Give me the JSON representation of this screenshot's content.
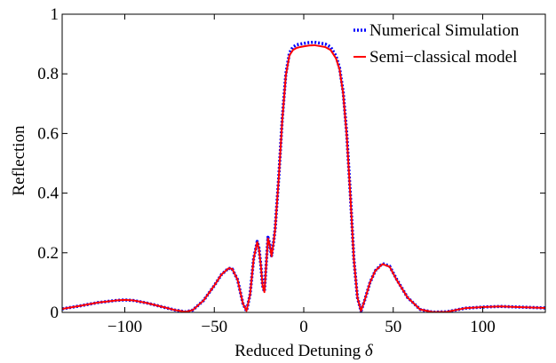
{
  "chart_data": {
    "type": "line",
    "xlabel": "Reduced Detuning δ",
    "ylabel": "Reflection",
    "xlim": [
      -135,
      135
    ],
    "ylim": [
      0,
      1
    ],
    "xticks": [
      -100,
      -50,
      0,
      50,
      100
    ],
    "xtick_labels": [
      "−100",
      "−50",
      "0",
      "50",
      "100"
    ],
    "yticks": [
      0,
      0.2,
      0.4,
      0.6,
      0.8,
      1
    ],
    "ytick_labels": [
      "0",
      "0.2",
      "0.4",
      "0.6",
      "0.8",
      "1"
    ],
    "grid": false,
    "legend_position": "top-right",
    "series": [
      {
        "name": "Numerical Simulation",
        "color": "#0000ff",
        "style": "dotted",
        "x": [
          -135,
          -125,
          -115,
          -105,
          -100,
          -95,
          -88,
          -80,
          -72,
          -66,
          -62,
          -56,
          -50,
          -46,
          -42,
          -40,
          -37,
          -34,
          -32,
          -30,
          -28,
          -26,
          -25,
          -24,
          -23,
          -22,
          -21,
          -20,
          -19,
          -18,
          -17,
          -16,
          -14,
          -12,
          -10,
          -8,
          -6,
          -4,
          -2,
          0,
          3,
          6,
          9,
          12,
          15,
          18,
          20,
          22,
          24,
          26,
          28,
          30,
          32,
          34,
          37,
          40,
          44,
          48,
          52,
          58,
          65,
          72,
          80,
          85,
          90,
          100,
          110,
          120,
          135
        ],
        "y": [
          0.012,
          0.022,
          0.033,
          0.04,
          0.042,
          0.04,
          0.032,
          0.02,
          0.008,
          0.002,
          0.008,
          0.04,
          0.09,
          0.127,
          0.148,
          0.146,
          0.11,
          0.03,
          0.005,
          0.06,
          0.18,
          0.238,
          0.215,
          0.16,
          0.09,
          0.07,
          0.16,
          0.252,
          0.23,
          0.19,
          0.23,
          0.28,
          0.45,
          0.65,
          0.8,
          0.87,
          0.89,
          0.897,
          0.9,
          0.902,
          0.905,
          0.906,
          0.903,
          0.9,
          0.89,
          0.86,
          0.82,
          0.74,
          0.6,
          0.4,
          0.18,
          0.05,
          0.005,
          0.04,
          0.1,
          0.14,
          0.164,
          0.155,
          0.11,
          0.05,
          0.01,
          0.001,
          0.002,
          0.008,
          0.014,
          0.018,
          0.02,
          0.018,
          0.015
        ]
      },
      {
        "name": "Semi−classical model",
        "color": "#ff0000",
        "style": "solid",
        "x": [
          -135,
          -125,
          -115,
          -105,
          -100,
          -95,
          -88,
          -80,
          -72,
          -66,
          -62,
          -56,
          -50,
          -46,
          -42,
          -40,
          -37,
          -34,
          -32,
          -30,
          -28,
          -26,
          -25,
          -24,
          -23,
          -22,
          -21,
          -20,
          -19,
          -18,
          -17,
          -16,
          -14,
          -12,
          -10,
          -8,
          -6,
          -4,
          -2,
          0,
          3,
          6,
          9,
          12,
          15,
          18,
          20,
          22,
          24,
          26,
          28,
          30,
          32,
          34,
          37,
          40,
          44,
          48,
          52,
          58,
          65,
          72,
          80,
          85,
          90,
          100,
          110,
          120,
          135
        ],
        "y": [
          0.012,
          0.022,
          0.033,
          0.04,
          0.042,
          0.04,
          0.032,
          0.02,
          0.008,
          0.002,
          0.008,
          0.04,
          0.09,
          0.127,
          0.148,
          0.146,
          0.11,
          0.03,
          0.005,
          0.06,
          0.18,
          0.236,
          0.212,
          0.158,
          0.09,
          0.068,
          0.158,
          0.248,
          0.226,
          0.188,
          0.228,
          0.278,
          0.448,
          0.645,
          0.795,
          0.862,
          0.88,
          0.887,
          0.89,
          0.892,
          0.895,
          0.896,
          0.893,
          0.89,
          0.88,
          0.852,
          0.815,
          0.735,
          0.595,
          0.395,
          0.178,
          0.05,
          0.005,
          0.04,
          0.1,
          0.14,
          0.162,
          0.153,
          0.108,
          0.05,
          0.01,
          0.001,
          0.002,
          0.008,
          0.014,
          0.018,
          0.02,
          0.018,
          0.015
        ]
      }
    ]
  }
}
